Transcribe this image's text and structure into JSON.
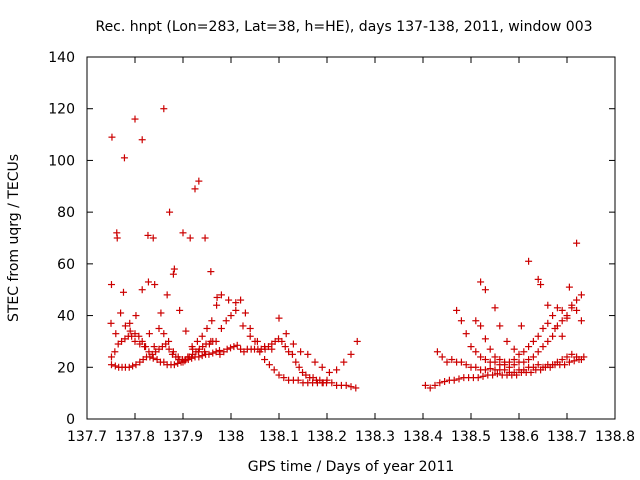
{
  "chart_data": {
    "type": "scatter",
    "title": "Rec. hnpt (Lon=283, Lat=38, h=HE), days 137-138, 2011, window 003",
    "xlabel": "GPS time / Days of year 2011",
    "ylabel": "STEC from uqrg / TECUs",
    "xlim": [
      137.7,
      138.8
    ],
    "ylim": [
      0,
      140
    ],
    "xticks": [
      137.7,
      137.8,
      137.9,
      138.0,
      138.1,
      138.2,
      138.3,
      138.4,
      138.5,
      138.6,
      138.7,
      138.8
    ],
    "xtick_labels": [
      "137.7",
      "137.8",
      "137.9",
      "138",
      "138.1",
      "138.2",
      "138.3",
      "138.4",
      "138.5",
      "138.6",
      "138.7",
      "138.8"
    ],
    "yticks": [
      0,
      20,
      40,
      60,
      80,
      100,
      120,
      140
    ],
    "ytick_labels": [
      "0",
      "20",
      "40",
      "60",
      "80",
      "100",
      "120",
      "140"
    ],
    "grid": false,
    "legend": "none",
    "color": "#cc0000",
    "marker": "plus",
    "series": [
      {
        "x": [
          137.751,
          137.759,
          137.766,
          137.773,
          137.78,
          137.788,
          137.795,
          137.802,
          137.81,
          137.817,
          137.824,
          137.831,
          137.838,
          137.846,
          137.853,
          137.86,
          137.867,
          137.875,
          137.882,
          137.889,
          137.896,
          137.904,
          137.911,
          137.918,
          137.925,
          137.933,
          137.94,
          137.947,
          137.954,
          137.962,
          137.969,
          137.976
        ],
        "y": [
          21,
          20.5,
          20,
          20,
          20,
          20,
          20.5,
          21,
          22,
          23,
          24,
          24,
          23.5,
          23,
          22,
          22,
          21,
          21,
          21,
          21.5,
          22,
          22.5,
          23,
          23.5,
          24,
          24,
          24.5,
          25,
          25,
          25.5,
          26,
          26.5
        ]
      },
      {
        "x": [
          137.751,
          137.758,
          137.765,
          137.772,
          137.779,
          137.786,
          137.793,
          137.8,
          137.808,
          137.815,
          137.822,
          137.829,
          137.836,
          137.843,
          137.85,
          137.857,
          137.864,
          137.871,
          137.878,
          137.885,
          137.892,
          137.899,
          137.906,
          137.913,
          137.92,
          137.927,
          137.934,
          137.941,
          137.948,
          137.955,
          137.962,
          137.969
        ],
        "y": [
          24,
          26,
          29,
          30,
          31,
          32,
          32,
          33,
          32,
          30,
          28,
          26,
          25,
          26,
          27,
          28,
          29,
          27,
          25,
          24,
          23,
          23,
          23,
          24,
          25,
          26,
          27,
          28,
          29,
          29,
          30,
          30
        ]
      },
      {
        "x": [
          137.75,
          137.76,
          137.77,
          137.78,
          137.79,
          137.8,
          137.81,
          137.82,
          137.83,
          137.84,
          137.85,
          137.86,
          137.87,
          137.88,
          137.89,
          137.9,
          137.91,
          137.92,
          137.93,
          137.94,
          137.95,
          137.96,
          137.97
        ],
        "y": [
          37,
          33,
          41,
          36,
          34,
          30,
          29,
          28,
          33,
          28,
          35,
          33,
          30,
          26,
          24,
          22,
          24,
          27,
          30,
          32,
          35,
          38,
          44
        ]
      },
      {
        "x": [
          137.751,
          137.763,
          137.776,
          137.789,
          137.802,
          137.815,
          137.828,
          137.841,
          137.854,
          137.867,
          137.88,
          137.893,
          137.906,
          137.919,
          137.932,
          137.945,
          137.958,
          137.971
        ],
        "y": [
          52,
          70,
          49,
          37,
          40,
          50,
          53,
          52,
          41,
          48,
          56,
          42,
          34,
          28,
          26,
          26,
          30,
          47
        ]
      },
      {
        "x": [
          137.752,
          137.762,
          137.778,
          137.8,
          137.815,
          137.827,
          137.838,
          137.86,
          137.872,
          137.882,
          137.9,
          137.915,
          137.925,
          137.933,
          137.946,
          137.958
        ],
        "y": [
          109,
          72,
          101,
          116,
          108,
          71,
          70,
          120,
          80,
          58,
          72,
          70,
          89,
          92,
          70,
          57
        ]
      },
      {
        "x": [
          137.977,
          137.985,
          137.992,
          137.999,
          138.006,
          138.013,
          138.02,
          138.027,
          138.034,
          138.042,
          138.049,
          138.056,
          138.063,
          138.071,
          138.078,
          138.085,
          138.092,
          138.099,
          138.106,
          138.113,
          138.12,
          138.128,
          138.135,
          138.142,
          138.149,
          138.156,
          138.164,
          138.171,
          138.178,
          138.185,
          138.192,
          138.199
        ],
        "y": [
          25,
          26,
          27,
          27.5,
          28,
          28.5,
          27,
          26,
          27,
          27,
          27,
          27,
          27,
          27,
          28,
          29,
          30,
          31,
          30,
          28,
          26,
          25,
          22,
          20,
          18,
          17,
          16,
          16,
          15,
          15,
          14,
          14
        ]
      },
      {
        "x": [
          137.98,
          137.99,
          138.0,
          138.01,
          138.02,
          138.03,
          138.04,
          138.05,
          138.06,
          138.07,
          138.08,
          138.09,
          138.1,
          138.11,
          138.12,
          138.13,
          138.14,
          138.15,
          138.16,
          138.17,
          138.18,
          138.19,
          138.2,
          138.21,
          138.22,
          138.23,
          138.24,
          138.25,
          138.26
        ],
        "y": [
          35,
          38,
          40,
          42,
          46,
          41,
          35,
          30,
          26,
          23,
          21,
          19,
          17,
          16,
          15,
          15,
          15,
          14,
          14,
          14,
          14,
          14,
          15,
          14,
          13,
          13,
          13,
          12.5,
          12
        ]
      },
      {
        "x": [
          137.98,
          137.995,
          138.01,
          138.025,
          138.04,
          138.055,
          138.07,
          138.085,
          138.1,
          138.115,
          138.13,
          138.145,
          138.16,
          138.175,
          138.19,
          138.205,
          138.22,
          138.235,
          138.25,
          138.263
        ],
        "y": [
          48,
          46,
          45,
          36,
          32,
          30,
          28,
          27,
          39,
          33,
          29,
          26,
          25,
          22,
          20,
          18,
          19,
          22,
          25,
          30
        ]
      },
      {
        "x": [
          138.405,
          138.415,
          138.425,
          138.435,
          138.445,
          138.455,
          138.465,
          138.475,
          138.485,
          138.495,
          138.505,
          138.515,
          138.525,
          138.535,
          138.545,
          138.555,
          138.565,
          138.575,
          138.585,
          138.595,
          138.605,
          138.615,
          138.625,
          138.635,
          138.645,
          138.655,
          138.665,
          138.675,
          138.685,
          138.695,
          138.705,
          138.715,
          138.725,
          138.735
        ],
        "y": [
          13,
          12,
          13,
          14,
          14.5,
          15,
          15,
          15.5,
          16,
          16,
          16,
          16,
          16.5,
          17,
          17,
          17.5,
          17,
          17,
          17,
          17,
          18,
          18,
          18,
          19,
          19,
          20,
          20,
          21,
          21,
          21,
          22,
          22.5,
          23,
          24
        ]
      },
      {
        "x": [
          138.43,
          138.44,
          138.45,
          138.46,
          138.47,
          138.48,
          138.49,
          138.5,
          138.51,
          138.52,
          138.53,
          138.54,
          138.55,
          138.56,
          138.57,
          138.58,
          138.59,
          138.6,
          138.61,
          138.62,
          138.63,
          138.64,
          138.65,
          138.66,
          138.67,
          138.68,
          138.69,
          138.7,
          138.71,
          138.72,
          138.73
        ],
        "y": [
          26,
          24,
          22,
          23,
          22,
          22,
          21,
          20,
          20,
          19,
          19,
          19.5,
          19,
          19,
          19,
          18,
          18,
          19,
          19,
          20,
          20,
          21,
          20,
          21,
          21,
          22,
          23,
          24,
          25,
          24,
          23
        ]
      },
      {
        "x": [
          138.47,
          138.48,
          138.49,
          138.5,
          138.51,
          138.52,
          138.53,
          138.54,
          138.55,
          138.56,
          138.57,
          138.58,
          138.59,
          138.6,
          138.61,
          138.62,
          138.63,
          138.64,
          138.65,
          138.66,
          138.67,
          138.68,
          138.69,
          138.7,
          138.71,
          138.72,
          138.73
        ],
        "y": [
          42,
          38,
          33,
          28,
          26,
          24,
          23,
          22,
          22,
          21,
          21,
          20,
          21,
          22,
          22,
          23,
          24,
          26,
          28,
          30,
          32,
          36,
          38,
          40,
          43,
          42,
          38
        ]
      },
      {
        "x": [
          138.51,
          138.52,
          138.53,
          138.54,
          138.55,
          138.56,
          138.57,
          138.58,
          138.59,
          138.6,
          138.61,
          138.62,
          138.63,
          138.64,
          138.65,
          138.66,
          138.67,
          138.68,
          138.69,
          138.7,
          138.71,
          138.72,
          138.73
        ],
        "y": [
          38,
          36,
          31,
          27,
          24,
          23,
          22,
          22,
          23,
          25,
          26,
          28,
          30,
          32,
          35,
          37,
          40,
          43,
          42,
          39,
          44,
          46,
          48
        ]
      },
      {
        "x": [
          138.52,
          138.53,
          138.55,
          138.56,
          138.575,
          138.59,
          138.605,
          138.62,
          138.64,
          138.645,
          138.66,
          138.675,
          138.69,
          138.705,
          138.72
        ],
        "y": [
          53,
          50,
          43,
          36,
          30,
          27,
          36,
          61,
          54,
          52,
          44,
          35,
          32,
          51,
          68
        ]
      }
    ]
  }
}
